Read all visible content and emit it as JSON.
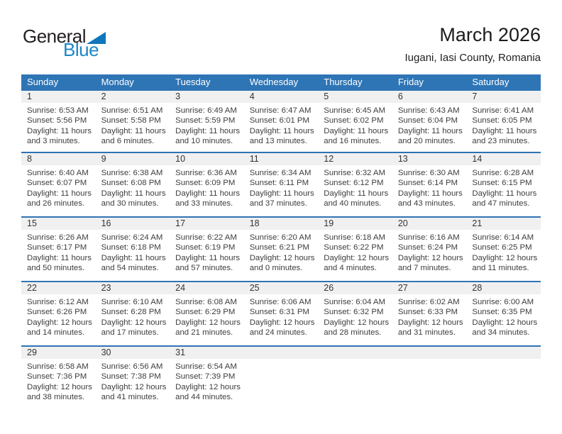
{
  "logo": {
    "general": "General",
    "blue": "Blue"
  },
  "header": {
    "title": "March 2026",
    "subtitle": "Iugani, Iasi County, Romania"
  },
  "colors": {
    "header_blue": "#2E75B5",
    "week_separator_blue": "#2E74B5",
    "day_strip_gray": "#F0F0F0",
    "logo_text_blue": "#1C87C9",
    "logo_triangle_blue": "#0E76BC"
  },
  "weekdays": [
    "Sunday",
    "Monday",
    "Tuesday",
    "Wednesday",
    "Thursday",
    "Friday",
    "Saturday"
  ],
  "weeks": [
    [
      {
        "day": "1",
        "lines": [
          "Sunrise: 6:53 AM",
          "Sunset: 5:56 PM",
          "Daylight: 11 hours",
          "and 3 minutes."
        ]
      },
      {
        "day": "2",
        "lines": [
          "Sunrise: 6:51 AM",
          "Sunset: 5:58 PM",
          "Daylight: 11 hours",
          "and 6 minutes."
        ]
      },
      {
        "day": "3",
        "lines": [
          "Sunrise: 6:49 AM",
          "Sunset: 5:59 PM",
          "Daylight: 11 hours",
          "and 10 minutes."
        ]
      },
      {
        "day": "4",
        "lines": [
          "Sunrise: 6:47 AM",
          "Sunset: 6:01 PM",
          "Daylight: 11 hours",
          "and 13 minutes."
        ]
      },
      {
        "day": "5",
        "lines": [
          "Sunrise: 6:45 AM",
          "Sunset: 6:02 PM",
          "Daylight: 11 hours",
          "and 16 minutes."
        ]
      },
      {
        "day": "6",
        "lines": [
          "Sunrise: 6:43 AM",
          "Sunset: 6:04 PM",
          "Daylight: 11 hours",
          "and 20 minutes."
        ]
      },
      {
        "day": "7",
        "lines": [
          "Sunrise: 6:41 AM",
          "Sunset: 6:05 PM",
          "Daylight: 11 hours",
          "and 23 minutes."
        ]
      }
    ],
    [
      {
        "day": "8",
        "lines": [
          "Sunrise: 6:40 AM",
          "Sunset: 6:07 PM",
          "Daylight: 11 hours",
          "and 26 minutes."
        ]
      },
      {
        "day": "9",
        "lines": [
          "Sunrise: 6:38 AM",
          "Sunset: 6:08 PM",
          "Daylight: 11 hours",
          "and 30 minutes."
        ]
      },
      {
        "day": "10",
        "lines": [
          "Sunrise: 6:36 AM",
          "Sunset: 6:09 PM",
          "Daylight: 11 hours",
          "and 33 minutes."
        ]
      },
      {
        "day": "11",
        "lines": [
          "Sunrise: 6:34 AM",
          "Sunset: 6:11 PM",
          "Daylight: 11 hours",
          "and 37 minutes."
        ]
      },
      {
        "day": "12",
        "lines": [
          "Sunrise: 6:32 AM",
          "Sunset: 6:12 PM",
          "Daylight: 11 hours",
          "and 40 minutes."
        ]
      },
      {
        "day": "13",
        "lines": [
          "Sunrise: 6:30 AM",
          "Sunset: 6:14 PM",
          "Daylight: 11 hours",
          "and 43 minutes."
        ]
      },
      {
        "day": "14",
        "lines": [
          "Sunrise: 6:28 AM",
          "Sunset: 6:15 PM",
          "Daylight: 11 hours",
          "and 47 minutes."
        ]
      }
    ],
    [
      {
        "day": "15",
        "lines": [
          "Sunrise: 6:26 AM",
          "Sunset: 6:17 PM",
          "Daylight: 11 hours",
          "and 50 minutes."
        ]
      },
      {
        "day": "16",
        "lines": [
          "Sunrise: 6:24 AM",
          "Sunset: 6:18 PM",
          "Daylight: 11 hours",
          "and 54 minutes."
        ]
      },
      {
        "day": "17",
        "lines": [
          "Sunrise: 6:22 AM",
          "Sunset: 6:19 PM",
          "Daylight: 11 hours",
          "and 57 minutes."
        ]
      },
      {
        "day": "18",
        "lines": [
          "Sunrise: 6:20 AM",
          "Sunset: 6:21 PM",
          "Daylight: 12 hours",
          "and 0 minutes."
        ]
      },
      {
        "day": "19",
        "lines": [
          "Sunrise: 6:18 AM",
          "Sunset: 6:22 PM",
          "Daylight: 12 hours",
          "and 4 minutes."
        ]
      },
      {
        "day": "20",
        "lines": [
          "Sunrise: 6:16 AM",
          "Sunset: 6:24 PM",
          "Daylight: 12 hours",
          "and 7 minutes."
        ]
      },
      {
        "day": "21",
        "lines": [
          "Sunrise: 6:14 AM",
          "Sunset: 6:25 PM",
          "Daylight: 12 hours",
          "and 11 minutes."
        ]
      }
    ],
    [
      {
        "day": "22",
        "lines": [
          "Sunrise: 6:12 AM",
          "Sunset: 6:26 PM",
          "Daylight: 12 hours",
          "and 14 minutes."
        ]
      },
      {
        "day": "23",
        "lines": [
          "Sunrise: 6:10 AM",
          "Sunset: 6:28 PM",
          "Daylight: 12 hours",
          "and 17 minutes."
        ]
      },
      {
        "day": "24",
        "lines": [
          "Sunrise: 6:08 AM",
          "Sunset: 6:29 PM",
          "Daylight: 12 hours",
          "and 21 minutes."
        ]
      },
      {
        "day": "25",
        "lines": [
          "Sunrise: 6:06 AM",
          "Sunset: 6:31 PM",
          "Daylight: 12 hours",
          "and 24 minutes."
        ]
      },
      {
        "day": "26",
        "lines": [
          "Sunrise: 6:04 AM",
          "Sunset: 6:32 PM",
          "Daylight: 12 hours",
          "and 28 minutes."
        ]
      },
      {
        "day": "27",
        "lines": [
          "Sunrise: 6:02 AM",
          "Sunset: 6:33 PM",
          "Daylight: 12 hours",
          "and 31 minutes."
        ]
      },
      {
        "day": "28",
        "lines": [
          "Sunrise: 6:00 AM",
          "Sunset: 6:35 PM",
          "Daylight: 12 hours",
          "and 34 minutes."
        ]
      }
    ],
    [
      {
        "day": "29",
        "lines": [
          "Sunrise: 6:58 AM",
          "Sunset: 7:36 PM",
          "Daylight: 12 hours",
          "and 38 minutes."
        ]
      },
      {
        "day": "30",
        "lines": [
          "Sunrise: 6:56 AM",
          "Sunset: 7:38 PM",
          "Daylight: 12 hours",
          "and 41 minutes."
        ]
      },
      {
        "day": "31",
        "lines": [
          "Sunrise: 6:54 AM",
          "Sunset: 7:39 PM",
          "Daylight: 12 hours",
          "and 44 minutes."
        ]
      },
      null,
      null,
      null,
      null
    ]
  ]
}
